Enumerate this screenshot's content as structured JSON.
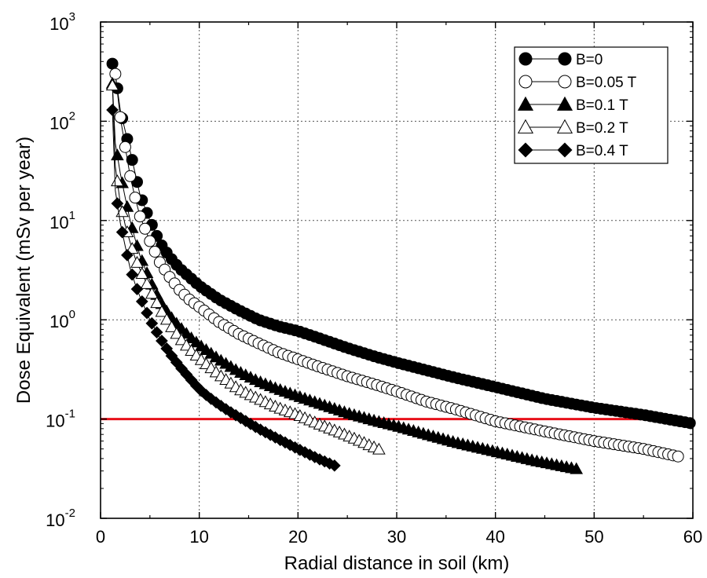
{
  "chart_data": {
    "type": "scatter",
    "title": "",
    "xlabel": "Radial distance in soil (km)",
    "ylabel": "Dose Equivalent (mSv per year)",
    "xlim": [
      0,
      60
    ],
    "ylim": [
      0.01,
      1000
    ],
    "yscale": "log",
    "grid": true,
    "legend_position": "top-right",
    "x_ticks": [
      "0",
      "10",
      "20",
      "30",
      "40",
      "50",
      "60"
    ],
    "y_ticks": [
      {
        "base": "10",
        "exp": "-2"
      },
      {
        "base": "10",
        "exp": "-1"
      },
      {
        "base": "10",
        "exp": "0"
      },
      {
        "base": "10",
        "exp": "1"
      },
      {
        "base": "10",
        "exp": "2"
      },
      {
        "base": "10",
        "exp": "3"
      }
    ],
    "reference_line": {
      "y": 0.1,
      "color": "#e8101a"
    },
    "series": [
      {
        "name": "B=0",
        "marker": "circle",
        "filled": true,
        "x": [
          1.2,
          1.5,
          2.0,
          2.5,
          3.0,
          3.5,
          4.0,
          5.0,
          6.0,
          7.0,
          8.0,
          9.0,
          10.0,
          12.0,
          14.0,
          16.0,
          18.0,
          20.0,
          22.0,
          25.0,
          28.0,
          30.0,
          33.0,
          36.0,
          40.0,
          45.0,
          50.0,
          55.0,
          60.0
        ],
        "y": [
          380,
          300,
          130,
          80,
          50,
          30,
          18,
          10,
          6.0,
          4.3,
          3.3,
          2.7,
          2.2,
          1.6,
          1.25,
          1.0,
          0.86,
          0.77,
          0.66,
          0.52,
          0.42,
          0.37,
          0.31,
          0.26,
          0.21,
          0.16,
          0.13,
          0.11,
          0.09
        ]
      },
      {
        "name": "B=0.05 T",
        "marker": "circle",
        "filled": false,
        "x": [
          1.5,
          2.0,
          2.5,
          3.0,
          3.5,
          4.0,
          5.0,
          6.0,
          7.0,
          8.0,
          9.0,
          10.0,
          12.0,
          14.0,
          16.0,
          18.0,
          20.0,
          22.0,
          25.0,
          28.0,
          30.0,
          33.0,
          36.0,
          40.0,
          45.0,
          50.0,
          55.0,
          58.5
        ],
        "y": [
          300,
          110,
          55,
          28,
          17,
          11,
          6.2,
          3.8,
          2.7,
          2.0,
          1.6,
          1.35,
          0.95,
          0.72,
          0.58,
          0.47,
          0.4,
          0.34,
          0.27,
          0.22,
          0.19,
          0.15,
          0.125,
          0.095,
          0.075,
          0.06,
          0.05,
          0.042
        ]
      },
      {
        "name": "B=0.1 T",
        "marker": "triangle",
        "filled": true,
        "x": [
          1.2,
          1.5,
          2.0,
          2.5,
          3.0,
          3.5,
          4.0,
          5.0,
          6.0,
          7.0,
          8.0,
          9.0,
          10.0,
          12.0,
          14.0,
          16.0,
          18.0,
          20.0,
          22.0,
          25.0,
          28.0,
          30.0,
          33.0,
          36.0,
          40.0,
          44.0,
          48.5
        ],
        "y": [
          240,
          60,
          30,
          17,
          10,
          6.5,
          4.4,
          2.5,
          1.55,
          1.1,
          0.85,
          0.68,
          0.56,
          0.4,
          0.3,
          0.24,
          0.2,
          0.17,
          0.145,
          0.115,
          0.095,
          0.085,
          0.07,
          0.058,
          0.047,
          0.038,
          0.031
        ]
      },
      {
        "name": "B=0.2 T",
        "marker": "triangle",
        "filled": false,
        "x": [
          1.2,
          1.5,
          2.0,
          2.5,
          3.0,
          3.5,
          4.0,
          5.0,
          6.0,
          7.0,
          8.0,
          9.0,
          10.0,
          12.0,
          14.0,
          16.0,
          18.0,
          20.0,
          22.0,
          24.0,
          26.0,
          28.5
        ],
        "y": [
          230,
          35,
          15,
          9.0,
          6.0,
          4.2,
          3.2,
          2.0,
          1.3,
          0.9,
          0.66,
          0.51,
          0.41,
          0.28,
          0.2,
          0.16,
          0.13,
          0.11,
          0.09,
          0.075,
          0.062,
          0.048
        ]
      },
      {
        "name": "B=0.4 T",
        "marker": "diamond",
        "filled": true,
        "x": [
          1.2,
          1.5,
          2.0,
          2.5,
          3.0,
          3.5,
          4.0,
          5.0,
          6.0,
          7.0,
          8.0,
          9.0,
          10.0,
          11.0,
          12.0,
          13.0,
          14.0,
          16.0,
          18.0,
          20.0,
          22.0,
          23.7
        ],
        "y": [
          130,
          20,
          9.5,
          5.5,
          3.3,
          2.3,
          1.7,
          1.0,
          0.66,
          0.46,
          0.34,
          0.26,
          0.2,
          0.165,
          0.14,
          0.12,
          0.105,
          0.08,
          0.063,
          0.05,
          0.04,
          0.034
        ]
      }
    ]
  }
}
